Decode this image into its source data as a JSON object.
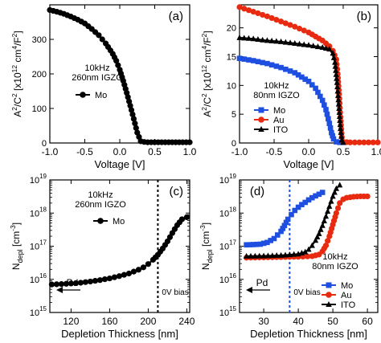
{
  "chart_data": [
    {
      "panel": "(a)",
      "type": "scatter",
      "xlabel": "Voltage [V]",
      "ylabel": "A²/C² [x10¹² cm⁴/F²]",
      "xlim": [
        -1.0,
        1.0
      ],
      "ylim": [
        0,
        400
      ],
      "xticks": [
        "-1.0",
        "-0.5",
        "0.0",
        "0.5",
        "1.0"
      ],
      "yticks": [
        "0",
        "100",
        "200",
        "300"
      ],
      "annotation": [
        "10kHz",
        "260nm IGZO"
      ],
      "legend_position": "middle-left",
      "series": [
        {
          "name": "Mo",
          "color": "#000000",
          "marker": "circle",
          "x": [
            -1.0,
            -0.9,
            -0.8,
            -0.7,
            -0.6,
            -0.5,
            -0.4,
            -0.3,
            -0.2,
            -0.1,
            -0.05,
            0.0,
            0.05,
            0.1,
            0.15,
            0.2,
            0.25,
            0.3,
            0.35,
            0.4,
            0.5,
            0.6,
            0.7,
            0.8,
            0.9,
            1.0
          ],
          "y": [
            385,
            380,
            374,
            366,
            357,
            346,
            330,
            312,
            288,
            258,
            238,
            212,
            180,
            145,
            108,
            70,
            30,
            5,
            3,
            2,
            2,
            2,
            2,
            2,
            2,
            2
          ]
        }
      ]
    },
    {
      "panel": "(b)",
      "type": "scatter",
      "xlabel": "Voltage [V]",
      "ylabel": "A²/C² [x10¹² cm⁴/F²]",
      "xlim": [
        -1.0,
        1.0
      ],
      "ylim": [
        0,
        24
      ],
      "xticks": [
        "-1.0",
        "-0.5",
        "0.0",
        "0.5",
        "1.0"
      ],
      "yticks": [
        "0",
        "5",
        "10",
        "15",
        "20"
      ],
      "annotation": [
        "10kHz",
        "80nm IGZO"
      ],
      "legend_position": "lower-left",
      "series": [
        {
          "name": "Mo",
          "color": "#1f4fe0",
          "marker": "square",
          "x": [
            -1.0,
            -0.8,
            -0.6,
            -0.4,
            -0.2,
            0.0,
            0.1,
            0.2,
            0.25,
            0.3,
            0.33,
            0.36,
            0.4,
            0.45,
            0.5
          ],
          "y": [
            14.7,
            14.3,
            13.8,
            13.1,
            12.2,
            10.7,
            9.5,
            7.4,
            5.8,
            3.4,
            1.8,
            0.7,
            0.2,
            0.1,
            0.1
          ]
        },
        {
          "name": "Au",
          "color": "#e82a10",
          "marker": "circle",
          "x": [
            -1.0,
            -0.8,
            -0.6,
            -0.4,
            -0.2,
            0.0,
            0.2,
            0.3,
            0.35,
            0.4,
            0.42,
            0.44,
            0.46,
            0.48,
            0.5,
            0.6,
            0.8,
            1.0
          ],
          "y": [
            23.6,
            22.8,
            22.0,
            21.1,
            20.2,
            19.2,
            17.8,
            16.8,
            16.0,
            14.5,
            12.0,
            8.5,
            4.5,
            1.0,
            0.2,
            0.1,
            0.1,
            0.1
          ]
        },
        {
          "name": "ITO",
          "color": "#000000",
          "marker": "triangle",
          "x": [
            -1.0,
            -0.8,
            -0.6,
            -0.4,
            -0.2,
            0.0,
            0.2,
            0.3,
            0.35,
            0.38,
            0.41,
            0.44,
            0.46,
            0.48,
            0.5
          ],
          "y": [
            18.3,
            18.1,
            17.8,
            17.6,
            17.3,
            17.0,
            16.6,
            16.3,
            15.6,
            14.0,
            10.5,
            6.0,
            2.5,
            0.5,
            0.1
          ]
        }
      ]
    },
    {
      "panel": "(c)",
      "type": "scatter",
      "xlabel": "Depletion Thickness [nm]",
      "ylabel": "N_depl [cm⁻³]",
      "yscale": "log",
      "xlim": [
        98,
        243
      ],
      "ylim": [
        1000000000000000.0,
        1e+19
      ],
      "xticks": [
        "120",
        "160",
        "200",
        "240"
      ],
      "yticks": [
        "10¹⁵",
        "10¹⁶",
        "10¹⁷",
        "10¹⁸",
        "10¹⁹"
      ],
      "annotation": [
        "10kHz",
        "260nm IGZO"
      ],
      "legend_position": "top-left",
      "vline": {
        "x": 210,
        "label": "0V bias"
      },
      "arrow_label": "Pd",
      "series": [
        {
          "name": "Mo",
          "color": "#000000",
          "marker": "circle",
          "x": [
            100,
            110,
            120,
            130,
            140,
            150,
            160,
            170,
            180,
            190,
            195,
            200,
            205,
            210,
            215,
            220,
            225,
            230,
            235,
            240
          ],
          "y": [
            7000000000000000.0,
            7200000000000000.0,
            7500000000000000.0,
            7900000000000000.0,
            8600000000000000.0,
            9500000000000000.0,
            1.07e+16,
            1.25e+16,
            1.5e+16,
            1.95e+16,
            2.3e+16,
            2.9e+16,
            3.9e+16,
            5.5e+16,
            8.5e+16,
            1.4e+17,
            2.5e+17,
            4.3e+17,
            6.5e+17,
            7.5e+17
          ]
        }
      ]
    },
    {
      "panel": "(d)",
      "type": "scatter",
      "xlabel": "Depletion Thickness [nm]",
      "ylabel": "N_depl [cm⁻³]",
      "yscale": "log",
      "xlim": [
        23,
        63
      ],
      "ylim": [
        1000000000000000.0,
        1e+19
      ],
      "xticks": [
        "30",
        "40",
        "50",
        "60"
      ],
      "yticks": [
        "10¹⁵",
        "10¹⁶",
        "10¹⁷",
        "10¹⁸",
        "10¹⁹"
      ],
      "annotation": [
        "10kHz",
        "80nm IGZO"
      ],
      "legend_position": "lower-right",
      "vline": {
        "x": 37.5,
        "label": "0V bias"
      },
      "arrow_label": "Pd",
      "series": [
        {
          "name": "Mo",
          "color": "#1f4fe0",
          "marker": "square",
          "x": [
            25,
            27,
            29,
            31,
            33,
            35,
            36,
            37,
            38,
            39,
            40,
            41,
            42,
            43,
            44,
            45,
            46,
            47
          ],
          "y": [
            1.1e+17,
            1.12e+17,
            1.15e+17,
            1.3e+17,
            1.7e+17,
            2.8e+17,
            4.2e+17,
            6.5e+17,
            9e+17,
            1.2e+18,
            1.5e+18,
            1.8e+18,
            2.1e+18,
            2.5e+18,
            2.9e+18,
            3.3e+18,
            3.7e+18,
            4.2e+18
          ]
        },
        {
          "name": "Au",
          "color": "#e82a10",
          "marker": "circle",
          "x": [
            25,
            30,
            35,
            40,
            44,
            46,
            47,
            48,
            49,
            50,
            51,
            52,
            53,
            54,
            56,
            58,
            60
          ],
          "y": [
            4.5e+16,
            4.6e+16,
            4.7e+16,
            4.8e+16,
            5e+16,
            5.6e+16,
            7e+16,
            1.05e+17,
            2e+17,
            4.5e+17,
            1e+18,
            2e+18,
            2.6e+18,
            2.9e+18,
            3.1e+18,
            3.2e+18,
            3.2e+18
          ]
        },
        {
          "name": "ITO",
          "color": "#000000",
          "marker": "triangle",
          "x": [
            25,
            30,
            35,
            40,
            42,
            43,
            44,
            45,
            46,
            47,
            48,
            49,
            50,
            51,
            52
          ],
          "y": [
            5e+16,
            5.1e+16,
            5.3e+16,
            5.8e+16,
            6.7e+16,
            8e+16,
            1.05e+17,
            1.5e+17,
            2.4e+17,
            4.2e+17,
            8e+17,
            1.6e+18,
            3.2e+18,
            5.5e+18,
            7e+18
          ]
        }
      ]
    }
  ]
}
